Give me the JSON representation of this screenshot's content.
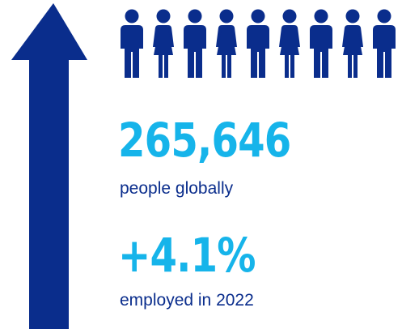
{
  "colors": {
    "accent": "#16b4ea",
    "brand": "#0a2d8c"
  },
  "arrow": {
    "icon": "arrow-up-icon"
  },
  "people": {
    "icon": "person-icon",
    "items": [
      "male",
      "female",
      "male",
      "female",
      "male",
      "female",
      "male",
      "female",
      "male"
    ]
  },
  "stats": [
    {
      "value": "265,646",
      "label": "people globally"
    },
    {
      "value": "+4.1%",
      "label": "employed in 2022"
    }
  ]
}
